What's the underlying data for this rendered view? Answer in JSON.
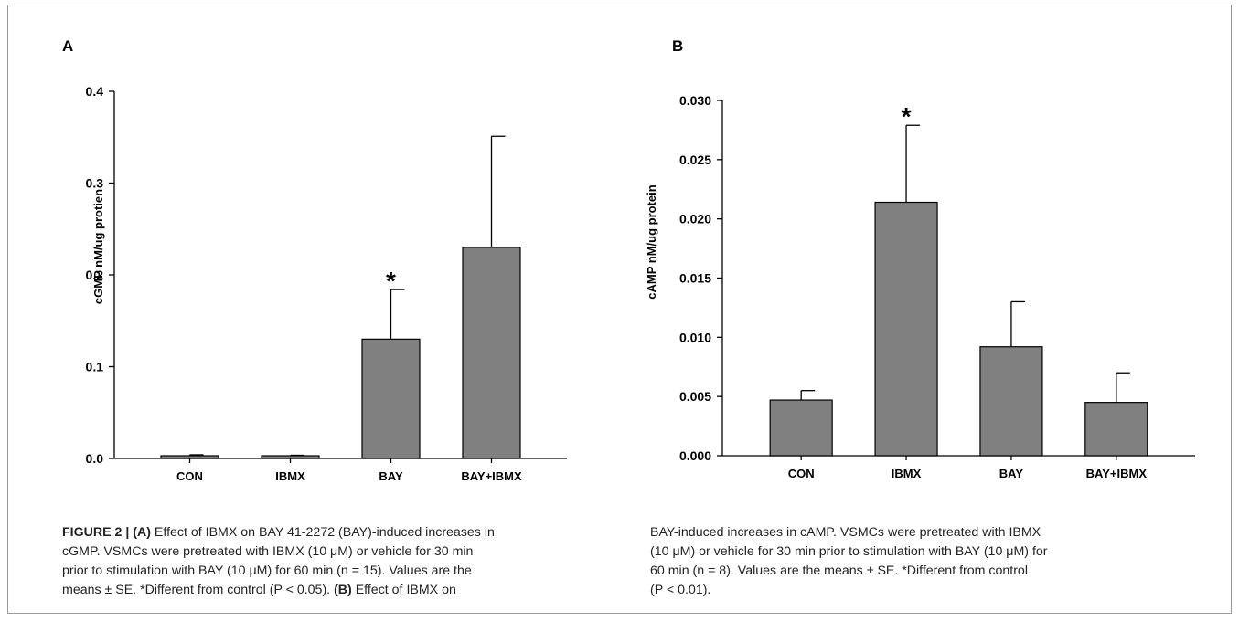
{
  "panels": [
    {
      "letter": "A"
    },
    {
      "letter": "B"
    }
  ],
  "chart_data": [
    {
      "type": "bar",
      "title": "",
      "xlabel": "",
      "ylabel": "cGMP nM/ug protien",
      "categories": [
        "CON",
        "IBMX",
        "BAY",
        "BAY+IBMX"
      ],
      "values": [
        0.003,
        0.003,
        0.13,
        0.23
      ],
      "errors": [
        0.001,
        0.0005,
        0.054,
        0.121
      ],
      "ylim": [
        0,
        0.4
      ],
      "yticks": [
        "0.0",
        "0.1",
        "0.2",
        "0.3",
        "0.4"
      ],
      "significance": [
        "",
        "",
        "*",
        ""
      ],
      "bar_color": "#808080",
      "grid": false
    },
    {
      "type": "bar",
      "title": "",
      "xlabel": "",
      "ylabel": "cAMP nM/ug protein",
      "categories": [
        "CON",
        "IBMX",
        "BAY",
        "BAY+IBMX"
      ],
      "values": [
        0.0047,
        0.0214,
        0.0092,
        0.0045
      ],
      "errors": [
        0.0008,
        0.0065,
        0.0038,
        0.0025
      ],
      "ylim": [
        0,
        0.03
      ],
      "yticks": [
        "0.000",
        "0.005",
        "0.010",
        "0.015",
        "0.020",
        "0.025",
        "0.030"
      ],
      "significance": [
        "",
        "*",
        "",
        ""
      ],
      "bar_color": "#808080",
      "grid": false
    }
  ],
  "caption": {
    "left_bold1": "FIGURE 2 | (A)",
    "left_text1": " Effect of IBMX on BAY 41-2272 (BAY)-induced increases in\ncGMP. VSMCs were pretreated with IBMX (10 μM) or vehicle for 30 min\nprior to stimulation with BAY (10 μM) for 60 min (n = 15). Values are the\nmeans ± SE. *Different from control (P < 0.05). ",
    "left_bold2": "(B)",
    "left_text2": " Effect of IBMX on",
    "right_text": "BAY-induced increases in cAMP. VSMCs were pretreated with IBMX\n(10 μM) or vehicle for 30 min prior to stimulation with BAY (10 μM) for\n60 min (n = 8). Values are the means ± SE. *Different from control\n(P < 0.01)."
  }
}
